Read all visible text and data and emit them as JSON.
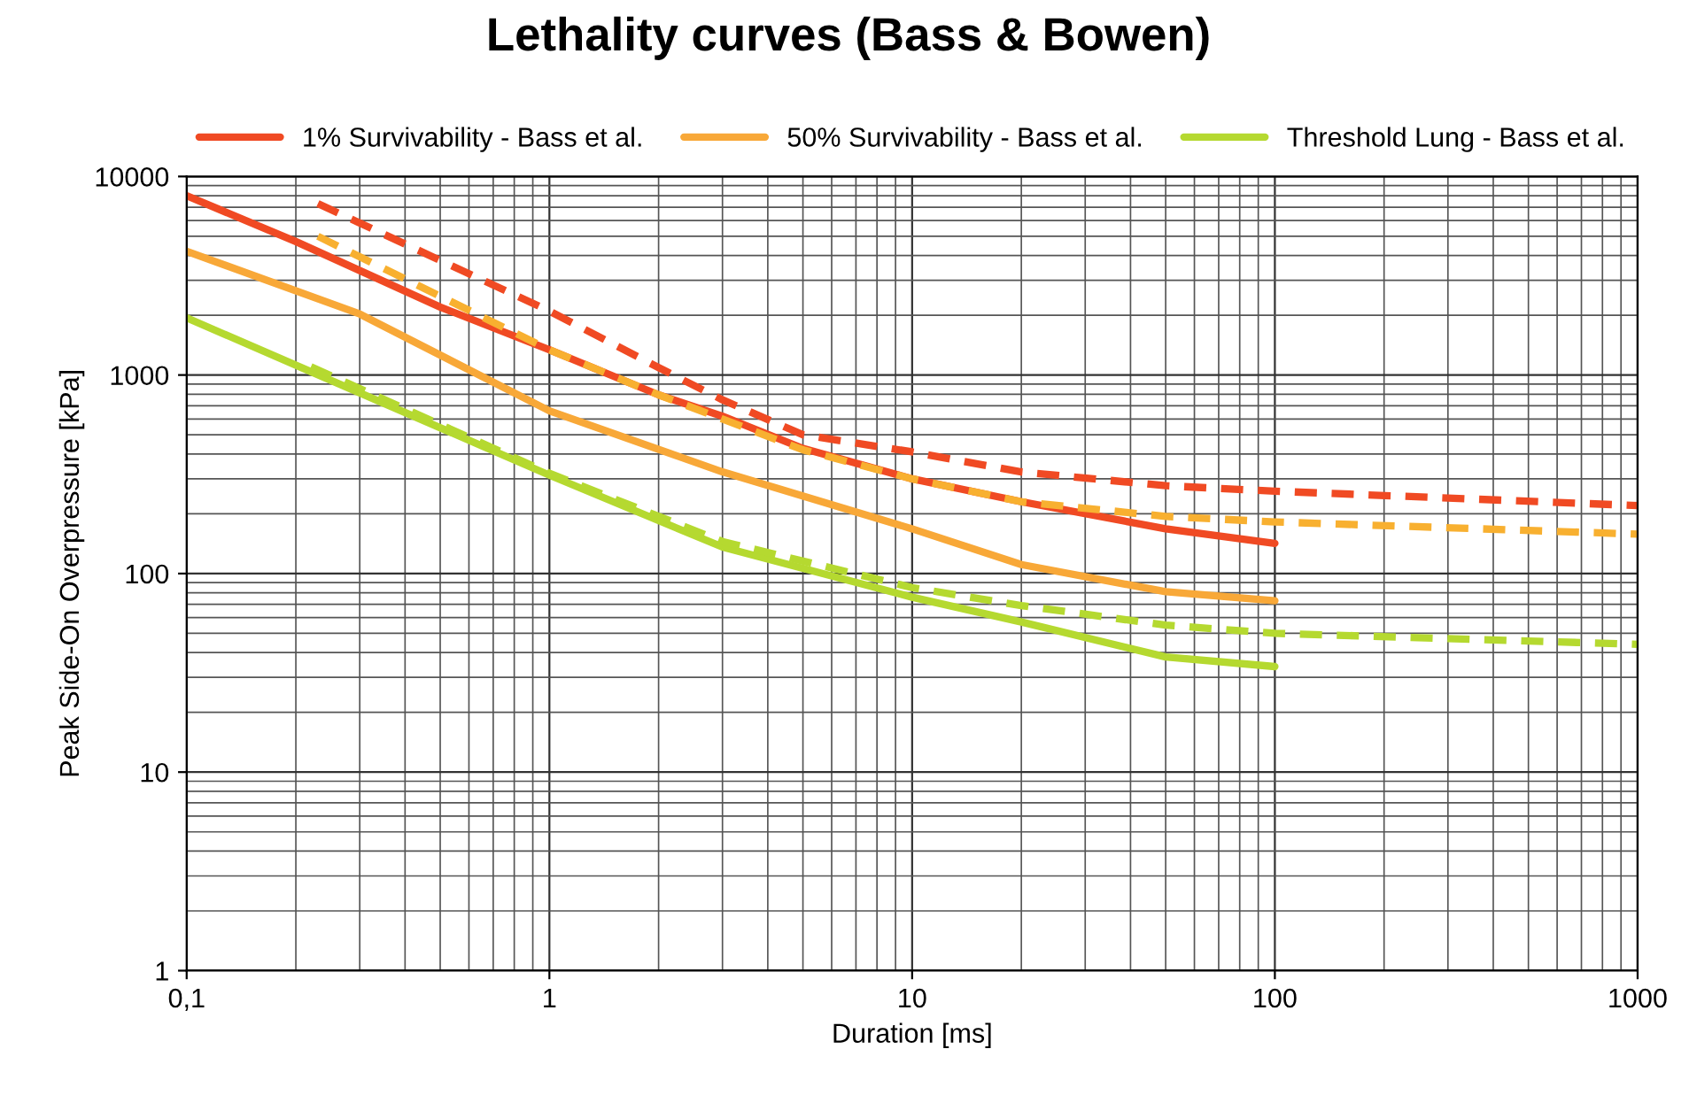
{
  "chart_data": {
    "type": "line",
    "title": "Lethality curves (Bass & Bowen)",
    "xlabel": "Duration [ms]",
    "ylabel": "Peak Side-On Overpressure [kPa]",
    "log": "xy",
    "grid": true,
    "legend": "top",
    "marker": "none",
    "xlim": [
      0.1,
      1000
    ],
    "xticks": [
      {
        "value": 0.1,
        "label": "0,1"
      },
      1,
      10,
      100,
      1000
    ],
    "ylim": [
      1,
      10000
    ],
    "yticks": [
      1,
      10,
      100,
      1000,
      10000
    ],
    "series": [
      {
        "name": "1% Survivability - Bass et al.",
        "color": "#f04a23",
        "line_style": "solid",
        "x": [
          0.1,
          0.2,
          0.5,
          1,
          2,
          3,
          5,
          10,
          20,
          50,
          100
        ],
        "values": [
          8000,
          4700,
          2200,
          1340,
          795,
          620,
          427,
          300,
          230,
          168,
          142
        ]
      },
      {
        "name": "50% Survivability - Bass et al.",
        "color": "#f8a838",
        "line_style": "solid",
        "x": [
          0.1,
          0.3,
          1,
          3,
          10,
          20,
          50,
          100
        ],
        "values": [
          4200,
          2030,
          660,
          325,
          168,
          111,
          81,
          73
        ]
      },
      {
        "name": "Threshold Lung - Bass et al.",
        "color": "#b5d930",
        "line_style": "solid",
        "x": [
          0.1,
          0.22,
          1,
          3,
          10,
          20,
          50,
          100
        ],
        "values": [
          1940,
          1040,
          313,
          136,
          76,
          57,
          38,
          34
        ]
      },
      {
        "color": "#f04a23",
        "line_style": "dashed",
        "x": [
          0.23,
          1,
          2,
          3,
          5,
          10,
          20,
          50,
          100,
          1000
        ],
        "values": [
          7300,
          2100,
          1090,
          750,
          500,
          410,
          325,
          277,
          260,
          220
        ]
      },
      {
        "color": "#f8b030",
        "line_style": "dashed",
        "x": [
          0.23,
          1,
          2,
          3,
          5,
          10,
          20,
          50,
          100,
          1000
        ],
        "values": [
          5000,
          1340,
          795,
          600,
          420,
          300,
          230,
          194,
          182,
          158
        ]
      },
      {
        "color": "#b5d930",
        "line_style": "dashed",
        "x": [
          0.22,
          1,
          3,
          10,
          20,
          50,
          100,
          1000
        ],
        "values": [
          1100,
          320,
          145,
          85,
          69,
          55,
          50,
          44
        ]
      }
    ]
  }
}
